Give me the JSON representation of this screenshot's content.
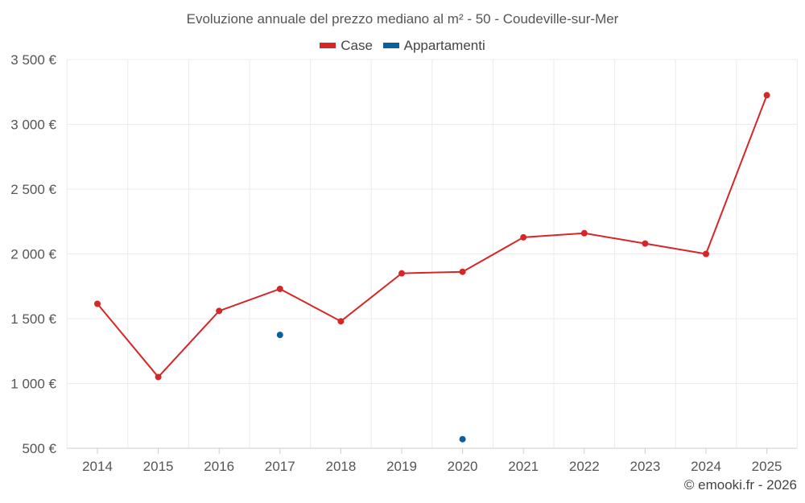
{
  "chart_data": {
    "type": "line",
    "title": "Evoluzione annuale del prezzo mediano al m² - 50 - Coudeville-sur-Mer",
    "categories": [
      "2014",
      "2015",
      "2016",
      "2017",
      "2018",
      "2019",
      "2020",
      "2021",
      "2022",
      "2023",
      "2024",
      "2025"
    ],
    "series": [
      {
        "name": "Case",
        "color": "#d62728",
        "values": [
          1615,
          1050,
          1560,
          1730,
          1480,
          1850,
          1862,
          2128,
          2160,
          2080,
          2000,
          3225
        ]
      },
      {
        "name": "Appartamenti",
        "color": "#0a5f9e",
        "values": [
          null,
          null,
          null,
          1375,
          null,
          null,
          570,
          null,
          null,
          null,
          null,
          null
        ]
      }
    ],
    "ylim": [
      500,
      3500
    ],
    "yticks": [
      500,
      1000,
      1500,
      2000,
      2500,
      3000,
      3500
    ],
    "ytick_labels": [
      "500 €",
      "1 000 €",
      "1 500 €",
      "2 000 €",
      "2 500 €",
      "3 000 €",
      "3 500 €"
    ],
    "xlabel": "",
    "ylabel": "",
    "grid": true,
    "legend_position": "top-center"
  },
  "credit": "© emooki.fr - 2026"
}
